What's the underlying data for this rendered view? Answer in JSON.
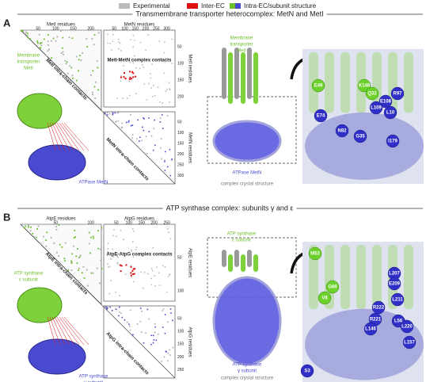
{
  "legend": [
    {
      "label": "Experimental"
    },
    {
      "label": "Inter-EC"
    },
    {
      "label": "Intra-EC/subunit structure"
    }
  ],
  "panels": [
    {
      "label": "A",
      "title": "Transmembrane transporter heterocomplex: MetN and MetI",
      "map": {
        "top_axis_left": "MetI residues",
        "top_ticks_left": [
          50,
          100,
          150,
          200
        ],
        "top_axis_right": "MetN residues",
        "top_ticks_right": [
          50,
          100,
          150,
          200,
          250,
          300
        ],
        "side_axis_top": "MetI residues",
        "side_ticks_top": [
          50,
          100,
          150,
          200
        ],
        "side_axis_bottom": "MetN residues",
        "side_ticks_bottom": [
          50,
          100,
          150,
          200,
          250,
          300
        ],
        "complex_label": "MetI-MetN complex contacts",
        "intra_top": "MetI intra-chain contacts",
        "intra_bottom": "MetN intra-chain contacts"
      },
      "subunit_top": [
        "Membrane",
        "transporter",
        "MetI"
      ],
      "subunit_bottom": [
        "ATPase MetN"
      ],
      "structure_top": [
        "Membrane",
        "transporter",
        "MetI"
      ],
      "structure_bottom": [
        "ATPase MetN"
      ],
      "structure_caption": "complex crystal structure",
      "closeup": "closeup",
      "residues_green": [
        "E49",
        "K148",
        "Q32"
      ],
      "residues_blue": [
        "R97",
        "E108",
        "L109",
        "L10",
        "E74",
        "N82",
        "G35",
        "I179"
      ]
    },
    {
      "label": "B",
      "title": "ATP synthase complex: subunits γ and ε",
      "map": {
        "top_axis_left": "AtpE residues",
        "top_ticks_left": [
          50,
          100
        ],
        "top_axis_right": "AtpG residues",
        "top_ticks_right": [
          50,
          100,
          150,
          200,
          250
        ],
        "side_axis_top": "AtpE residues",
        "side_ticks_top": [
          50,
          100
        ],
        "side_axis_bottom": "AtpG residues",
        "side_ticks_bottom": [
          50,
          100,
          150,
          200,
          250
        ],
        "complex_label": "AtpE-AtpG complex contacts",
        "intra_top": "AtpE intra-chain contacts",
        "intra_bottom": "AtpG intra-chain contacts"
      },
      "subunit_top": [
        "ATP synthase",
        "ε subunit"
      ],
      "subunit_bottom": [
        "ATP synthase",
        "γ subunit"
      ],
      "structure_top": [
        "ATP synthase",
        "ε subunit"
      ],
      "structure_bottom": [
        "ATP synthase",
        "γ subunit"
      ],
      "structure_caption": "complex crystal structure",
      "closeup": "closeup",
      "residues_green": [
        "M53",
        "G66",
        "V8"
      ],
      "residues_blue": [
        "L207",
        "E209",
        "L211",
        "L56",
        "R222",
        "R221",
        "L220",
        "L146",
        "L157",
        "S3"
      ]
    }
  ]
}
